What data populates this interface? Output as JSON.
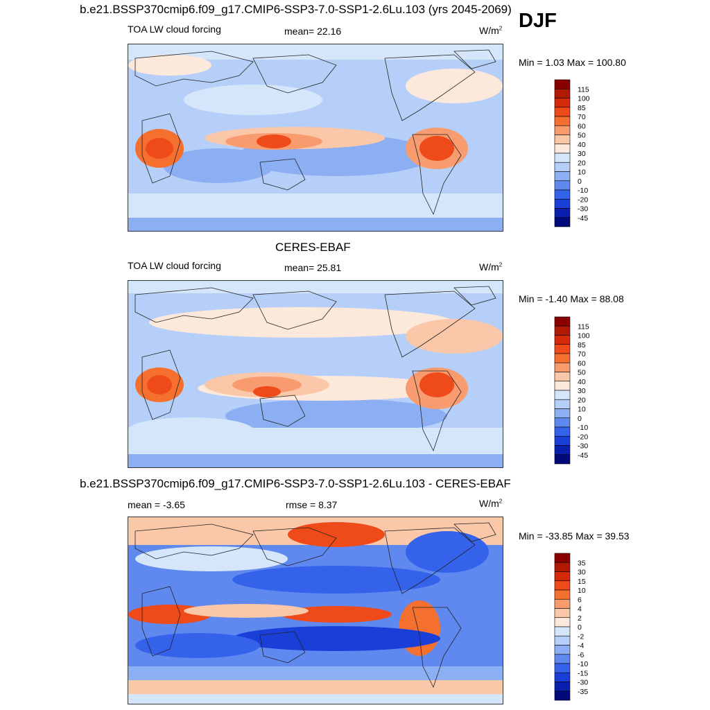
{
  "season": "DJF",
  "panels": [
    {
      "title": "b.e21.BSSP370cmip6.f09_g17.CMIP6-SSP3-7.0-SSP1-2.6Lu.103 (yrs 2045-2069)",
      "left_label": "TOA LW cloud forcing",
      "center_label": "mean=  22.16",
      "units": "W/m",
      "units_sup": "2",
      "minmax": "Min =   1.03 Max = 100.80"
    },
    {
      "title": "CERES-EBAF",
      "left_label": "TOA LW cloud forcing",
      "center_label": "mean=  25.81",
      "units": "W/m",
      "units_sup": "2",
      "minmax": "Min =  -1.40 Max =  88.08"
    },
    {
      "title": "b.e21.BSSP370cmip6.f09_g17.CMIP6-SSP3-7.0-SSP1-2.6Lu.103 - CERES-EBAF",
      "left_label": "mean =  -3.65",
      "center_label": "rmse =   8.37",
      "units": "W/m",
      "units_sup": "2",
      "minmax": "Min = -33.85 Max =  39.53"
    }
  ],
  "chart_data": [
    {
      "type": "heatmap",
      "title": "b.e21.BSSP370cmip6.f09_g17.CMIP6-SSP3-7.0-SSP1-2.6Lu.103 (yrs 2045-2069)",
      "variable": "TOA LW cloud forcing",
      "units": "W/m2",
      "mean": 22.16,
      "min": 1.03,
      "max": 100.8,
      "colorbar_levels": [
        "115",
        "100",
        "85",
        "70",
        "60",
        "50",
        "40",
        "30",
        "20",
        "10",
        "0",
        "-10",
        "-20",
        "-30",
        "-45"
      ],
      "colorbar_colors": [
        "#8a0000",
        "#b01a05",
        "#d52a0a",
        "#ee4a1a",
        "#f5702e",
        "#f89c70",
        "#fbc7a9",
        "#fde8dc",
        "#d6e6fa",
        "#b6cff8",
        "#8caef3",
        "#5f89ef",
        "#3462eb",
        "#1a3fd9",
        "#0a1fb0",
        "#000a7a"
      ]
    },
    {
      "type": "heatmap",
      "title": "CERES-EBAF",
      "variable": "TOA LW cloud forcing",
      "units": "W/m2",
      "mean": 25.81,
      "min": -1.4,
      "max": 88.08,
      "colorbar_levels": [
        "115",
        "100",
        "85",
        "70",
        "60",
        "50",
        "40",
        "30",
        "20",
        "10",
        "0",
        "-10",
        "-20",
        "-30",
        "-45"
      ],
      "colorbar_colors": [
        "#8a0000",
        "#b01a05",
        "#d52a0a",
        "#ee4a1a",
        "#f5702e",
        "#f89c70",
        "#fbc7a9",
        "#fde8dc",
        "#d6e6fa",
        "#b6cff8",
        "#8caef3",
        "#5f89ef",
        "#3462eb",
        "#1a3fd9",
        "#0a1fb0",
        "#000a7a"
      ]
    },
    {
      "type": "heatmap",
      "title": "b.e21.BSSP370cmip6.f09_g17.CMIP6-SSP3-7.0-SSP1-2.6Lu.103 - CERES-EBAF",
      "units": "W/m2",
      "mean": -3.65,
      "rmse": 8.37,
      "min": -33.85,
      "max": 39.53,
      "colorbar_levels": [
        "35",
        "30",
        "15",
        "10",
        "6",
        "4",
        "2",
        "0",
        "-2",
        "-4",
        "-6",
        "-10",
        "-15",
        "-30",
        "-35"
      ],
      "colorbar_colors": [
        "#8a0000",
        "#b01a05",
        "#d52a0a",
        "#ee4a1a",
        "#f5702e",
        "#f89c70",
        "#fbc7a9",
        "#fde8dc",
        "#d6e6fa",
        "#b6cff8",
        "#8caef3",
        "#5f89ef",
        "#3462eb",
        "#1a3fd9",
        "#0a1fb0",
        "#000a7a"
      ]
    }
  ]
}
